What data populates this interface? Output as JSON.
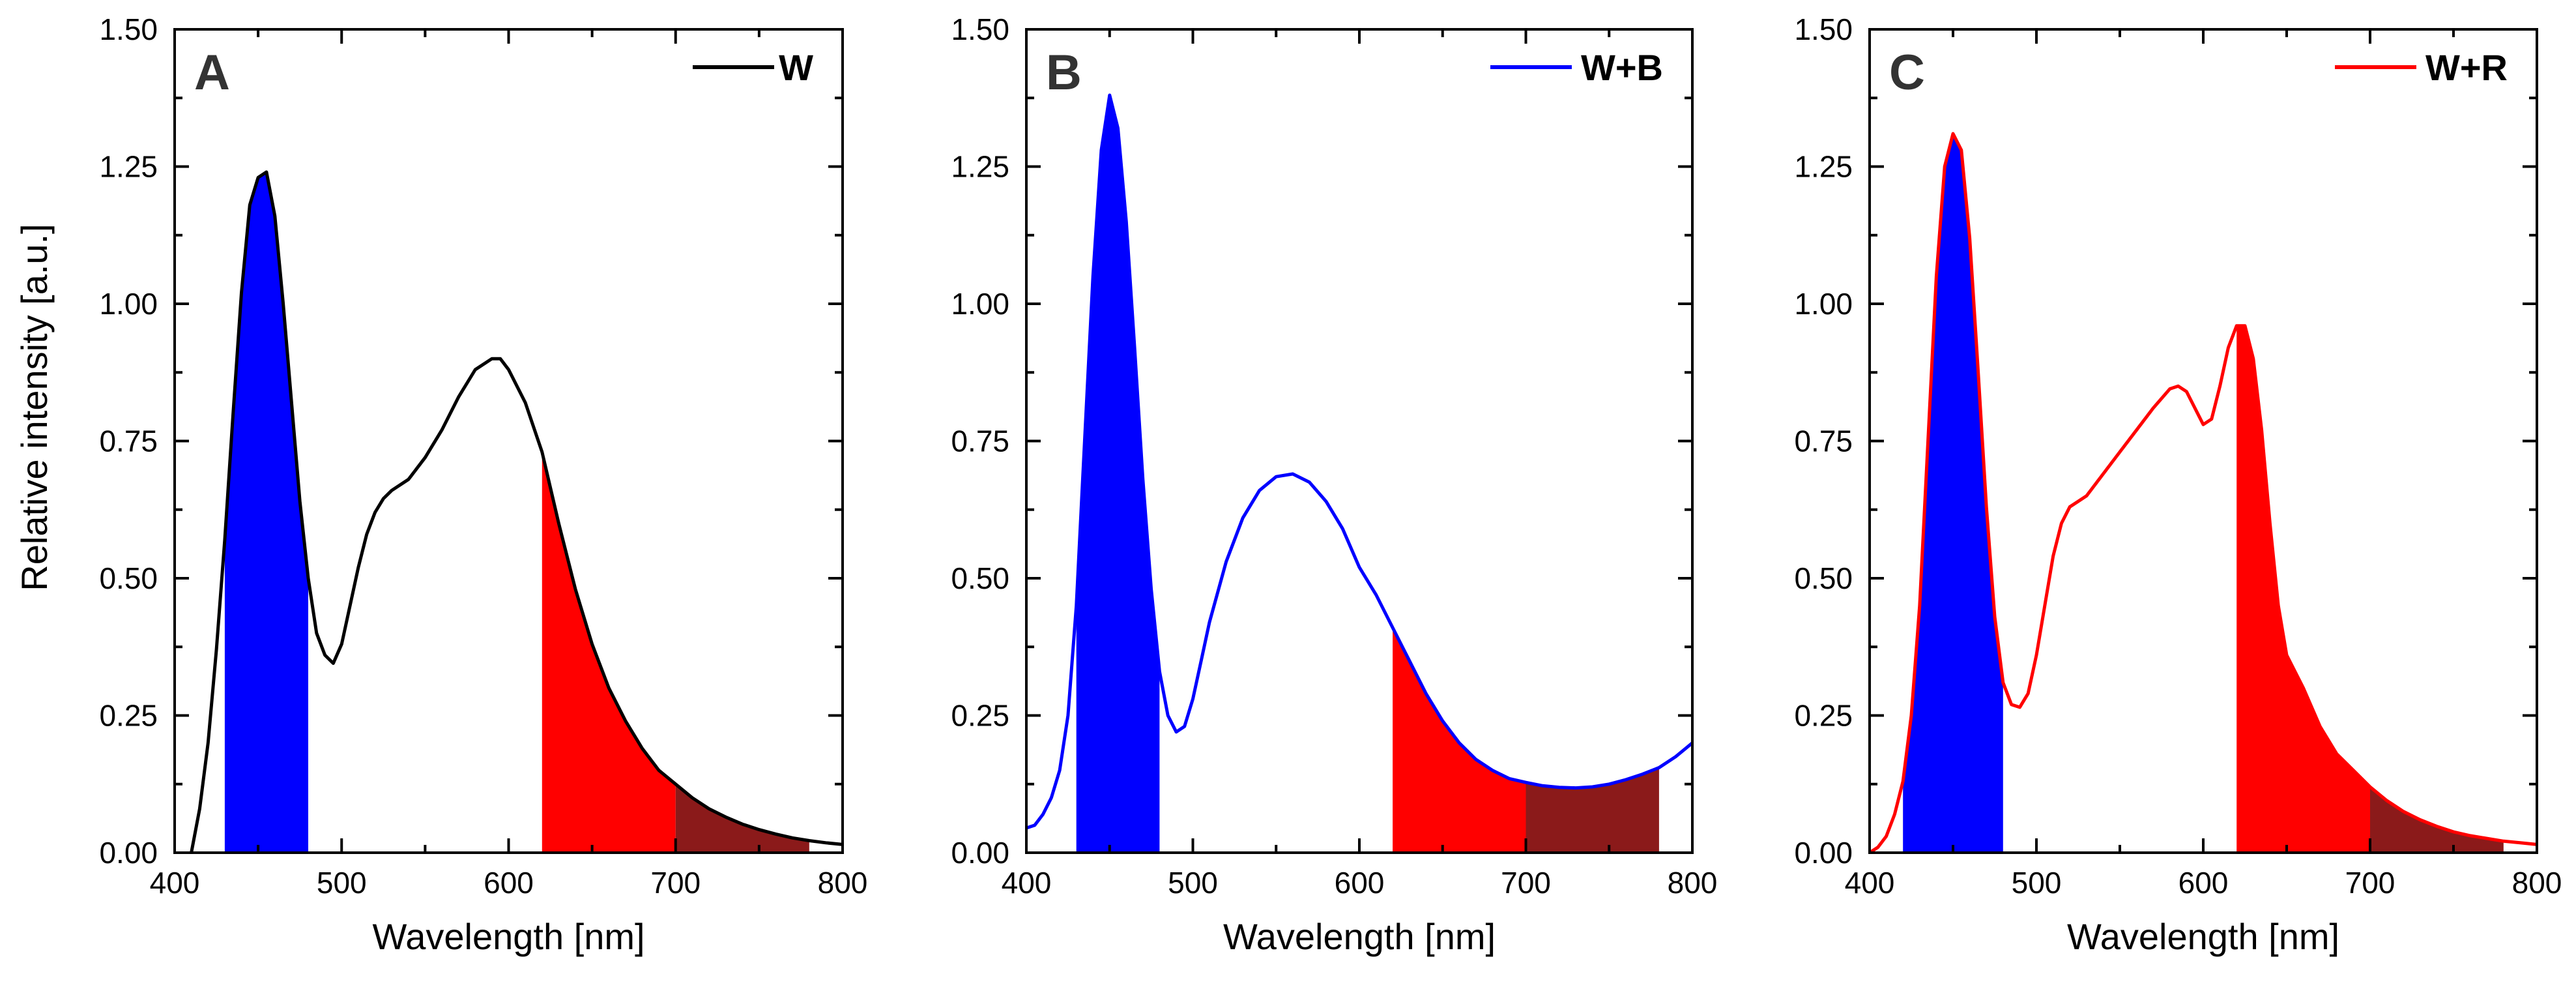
{
  "figure": {
    "ylabel": "Relative intensity [a.u.]"
  },
  "chart_data": [
    {
      "type": "line",
      "panel_label": "A",
      "xlabel": "Wavelength [nm]",
      "ylabel": "Relative intensity [a.u.]",
      "xlim": [
        400,
        800
      ],
      "ylim": [
        0,
        1.5
      ],
      "xticks": [
        "400",
        "500",
        "600",
        "700",
        "800"
      ],
      "yticks": [
        "0.00",
        "0.25",
        "0.50",
        "0.75",
        "1.00",
        "1.25",
        "1.50"
      ],
      "legend_position": "top-right",
      "series": [
        {
          "name": "W",
          "color": "#000000",
          "x": [
            410,
            415,
            420,
            425,
            430,
            435,
            440,
            445,
            450,
            455,
            460,
            465,
            470,
            475,
            480,
            485,
            490,
            495,
            500,
            505,
            510,
            515,
            520,
            525,
            530,
            540,
            550,
            560,
            570,
            580,
            590,
            595,
            600,
            610,
            620,
            630,
            640,
            650,
            660,
            670,
            680,
            690,
            700,
            710,
            720,
            730,
            740,
            750,
            760,
            770,
            780,
            790,
            800
          ],
          "y": [
            0.0,
            0.08,
            0.2,
            0.37,
            0.57,
            0.8,
            1.02,
            1.18,
            1.23,
            1.24,
            1.16,
            1.0,
            0.82,
            0.64,
            0.5,
            0.4,
            0.36,
            0.345,
            0.38,
            0.45,
            0.52,
            0.58,
            0.62,
            0.645,
            0.66,
            0.68,
            0.72,
            0.77,
            0.83,
            0.88,
            0.9,
            0.9,
            0.88,
            0.82,
            0.73,
            0.6,
            0.48,
            0.38,
            0.3,
            0.24,
            0.19,
            0.15,
            0.125,
            0.1,
            0.08,
            0.065,
            0.052,
            0.042,
            0.034,
            0.027,
            0.022,
            0.018,
            0.015
          ]
        }
      ],
      "shaded_bands": [
        {
          "from": 430,
          "to": 480,
          "color": "#0000ff"
        },
        {
          "from": 620,
          "to": 700,
          "color": "#ff0000"
        },
        {
          "from": 700,
          "to": 780,
          "color": "#8b1a1a"
        }
      ]
    },
    {
      "type": "line",
      "panel_label": "B",
      "xlabel": "Wavelength [nm]",
      "ylabel": "",
      "xlim": [
        400,
        800
      ],
      "ylim": [
        0,
        1.5
      ],
      "xticks": [
        "400",
        "500",
        "600",
        "700",
        "800"
      ],
      "yticks": [
        "0.00",
        "0.25",
        "0.50",
        "0.75",
        "1.00",
        "1.25",
        "1.50"
      ],
      "legend_position": "top-right",
      "series": [
        {
          "name": "W+B",
          "color": "#0000ff",
          "x": [
            400,
            405,
            410,
            415,
            420,
            425,
            430,
            435,
            440,
            445,
            450,
            455,
            460,
            465,
            470,
            475,
            480,
            485,
            490,
            495,
            500,
            505,
            510,
            520,
            530,
            540,
            550,
            560,
            570,
            580,
            590,
            600,
            610,
            620,
            630,
            640,
            650,
            660,
            670,
            680,
            690,
            700,
            710,
            720,
            730,
            740,
            750,
            760,
            770,
            780,
            790,
            800
          ],
          "y": [
            0.045,
            0.05,
            0.07,
            0.1,
            0.15,
            0.25,
            0.45,
            0.75,
            1.05,
            1.28,
            1.38,
            1.32,
            1.15,
            0.92,
            0.68,
            0.48,
            0.33,
            0.25,
            0.22,
            0.23,
            0.28,
            0.35,
            0.42,
            0.53,
            0.61,
            0.66,
            0.685,
            0.69,
            0.675,
            0.64,
            0.59,
            0.52,
            0.47,
            0.41,
            0.35,
            0.29,
            0.24,
            0.2,
            0.17,
            0.15,
            0.135,
            0.128,
            0.122,
            0.119,
            0.118,
            0.12,
            0.125,
            0.133,
            0.143,
            0.155,
            0.175,
            0.2
          ]
        }
      ],
      "shaded_bands": [
        {
          "from": 430,
          "to": 480,
          "color": "#0000ff"
        },
        {
          "from": 620,
          "to": 700,
          "color": "#ff0000"
        },
        {
          "from": 700,
          "to": 780,
          "color": "#8b1a1a"
        }
      ]
    },
    {
      "type": "line",
      "panel_label": "C",
      "xlabel": "Wavelength [nm]",
      "ylabel": "",
      "xlim": [
        400,
        800
      ],
      "ylim": [
        0,
        1.5
      ],
      "xticks": [
        "400",
        "500",
        "600",
        "700",
        "800"
      ],
      "yticks": [
        "0.00",
        "0.25",
        "0.50",
        "0.75",
        "1.00",
        "1.25",
        "1.50"
      ],
      "legend_position": "top-right",
      "series": [
        {
          "name": "W+R",
          "color": "#ff0000",
          "x": [
            400,
            405,
            410,
            415,
            420,
            425,
            430,
            435,
            440,
            445,
            450,
            455,
            460,
            465,
            470,
            475,
            480,
            485,
            490,
            495,
            500,
            505,
            510,
            515,
            520,
            525,
            530,
            540,
            550,
            560,
            570,
            580,
            585,
            590,
            595,
            600,
            605,
            610,
            615,
            620,
            625,
            630,
            635,
            640,
            645,
            650,
            660,
            670,
            680,
            690,
            700,
            710,
            720,
            730,
            740,
            750,
            760,
            770,
            780,
            790,
            800
          ],
          "y": [
            0.0,
            0.01,
            0.03,
            0.07,
            0.13,
            0.25,
            0.45,
            0.75,
            1.05,
            1.25,
            1.31,
            1.28,
            1.12,
            0.88,
            0.63,
            0.43,
            0.31,
            0.27,
            0.265,
            0.29,
            0.36,
            0.45,
            0.54,
            0.6,
            0.63,
            0.64,
            0.65,
            0.69,
            0.73,
            0.77,
            0.81,
            0.845,
            0.85,
            0.84,
            0.81,
            0.78,
            0.79,
            0.85,
            0.92,
            0.96,
            0.96,
            0.9,
            0.77,
            0.6,
            0.45,
            0.36,
            0.3,
            0.23,
            0.18,
            0.15,
            0.12,
            0.095,
            0.075,
            0.06,
            0.048,
            0.038,
            0.031,
            0.026,
            0.021,
            0.018,
            0.015
          ]
        }
      ],
      "shaded_bands": [
        {
          "from": 420,
          "to": 480,
          "color": "#0000ff"
        },
        {
          "from": 620,
          "to": 700,
          "color": "#ff0000"
        },
        {
          "from": 700,
          "to": 780,
          "color": "#8b1a1a"
        }
      ]
    }
  ]
}
